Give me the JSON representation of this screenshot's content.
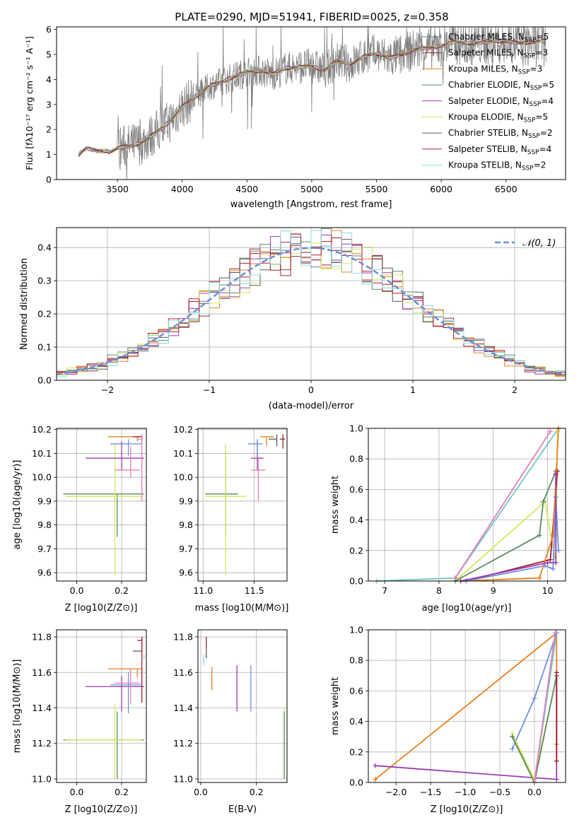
{
  "figure": {
    "title": "PLATE=0290, MJD=51941, FIBERID=0025, z=0.358",
    "colors": {
      "Chabrier MILES": "#5b8a63",
      "Salpeter MILES": "#a31e2a",
      "Kroupa MILES": "#e87f1e",
      "Chabrier ELODIE": "#5b8a63",
      "Salpeter ELODIE": "#9b3fb0",
      "Kroupa ELODIE": "#d6e55a",
      "Chabrier STELIB": "#5a5a5a",
      "Salpeter STELIB": "#b3202e",
      "Kroupa STELIB": "#8ed8de",
      "pink": "#e57fb8",
      "blue": "#6f8fe0",
      "teal": "#6ec6c6",
      "data": "#808080"
    }
  },
  "chart_data": [
    {
      "id": "spectrum",
      "type": "line",
      "title": "PLATE=0290, MJD=51941, FIBERID=0025, z=0.358",
      "xlabel": "wavelength [Angstrom, rest frame]",
      "ylabel": "Flux [fλ10⁻¹⁷ erg cm⁻² s⁻¹ A⁻¹]",
      "xlim": [
        3030,
        6960
      ],
      "ylim": [
        0,
        6.1
      ],
      "xticks": [
        3500,
        4000,
        4500,
        5000,
        5500,
        6000,
        6500
      ],
      "xtick_labels": [
        "3500",
        "4000",
        "4500",
        "5000",
        "5500",
        "6000",
        "6500"
      ],
      "yticks": [
        0,
        1,
        2,
        3,
        4,
        5,
        6
      ],
      "ytick_labels": [
        "0",
        "1",
        "2",
        "3",
        "4",
        "5",
        "6"
      ],
      "legend": "upper right",
      "continuum": {
        "x": [
          3200,
          3260,
          3300,
          3350,
          3400,
          3450,
          3500,
          3600,
          3700,
          3800,
          3900,
          4000,
          4100,
          4200,
          4300,
          4400,
          4500,
          4600,
          4700,
          4800,
          4900,
          5000,
          5100,
          5200,
          5300,
          5400,
          5500,
          5600,
          5700,
          5800,
          5900,
          6000,
          6100,
          6200,
          6300,
          6400,
          6500,
          6600,
          6700,
          6800
        ],
        "y": [
          1.0,
          1.25,
          1.2,
          1.15,
          1.15,
          1.1,
          1.25,
          1.35,
          1.5,
          1.9,
          2.3,
          2.9,
          3.3,
          3.7,
          3.9,
          4.1,
          4.3,
          4.35,
          4.2,
          4.45,
          4.5,
          4.55,
          4.35,
          4.75,
          4.6,
          4.9,
          5.05,
          4.85,
          5.0,
          5.2,
          5.25,
          5.35,
          5.5,
          5.45,
          5.45,
          5.55,
          5.5,
          5.45,
          5.5,
          5.55
        ]
      },
      "series": [
        {
          "name": "Chabrier MILES, N_SSP=5",
          "label_main": "Chabrier MILES, N",
          "label_sub": "SSP",
          "label_tail": "=5",
          "color": "#5b8a63"
        },
        {
          "name": "Salpeter MILES, N_SSP=3",
          "label_main": "Salpeter MILES, N",
          "label_sub": "SSP",
          "label_tail": "=3",
          "color": "#a31e2a"
        },
        {
          "name": "Kroupa MILES, N_SSP=3",
          "label_main": "Kroupa MILES, N",
          "label_sub": "SSP",
          "label_tail": "=3",
          "color": "#e87f1e"
        },
        {
          "name": "Chabrier ELODIE, N_SSP=5",
          "label_main": "Chabrier ELODIE, N",
          "label_sub": "SSP",
          "label_tail": "=5",
          "color": "#5b8a63"
        },
        {
          "name": "Salpeter ELODIE, N_SSP=4",
          "label_main": "Salpeter ELODIE, N",
          "label_sub": "SSP",
          "label_tail": "=4",
          "color": "#9b3fb0"
        },
        {
          "name": "Kroupa ELODIE, N_SSP=5",
          "label_main": "Kroupa ELODIE, N",
          "label_sub": "SSP",
          "label_tail": "=5",
          "color": "#d6e55a"
        },
        {
          "name": "Chabrier STELIB, N_SSP=2",
          "label_main": "Chabrier STELIB, N",
          "label_sub": "SSP",
          "label_tail": "=2",
          "color": "#5a5a5a"
        },
        {
          "name": "Salpeter STELIB, N_SSP=4",
          "label_main": "Salpeter STELIB, N",
          "label_sub": "SSP",
          "label_tail": "=4",
          "color": "#b3202e"
        },
        {
          "name": "Kroupa STELIB, N_SSP=2",
          "label_main": "Kroupa STELIB, N",
          "label_sub": "SSP",
          "label_tail": "=2",
          "color": "#8ed8de"
        }
      ]
    },
    {
      "id": "residuals",
      "type": "line",
      "xlabel": "(data-model)/error",
      "ylabel": "Normed distribution",
      "xlim": [
        -2.5,
        2.5
      ],
      "ylim": [
        0,
        0.46
      ],
      "xticks": [
        -2,
        -1,
        0,
        1,
        2
      ],
      "xtick_labels": [
        "−2",
        "−1",
        "0",
        "1",
        "2"
      ],
      "yticks": [
        0.0,
        0.1,
        0.2,
        0.3,
        0.4
      ],
      "ytick_labels": [
        "0.0",
        "0.1",
        "0.2",
        "0.3",
        "0.4"
      ],
      "legend": "upper right",
      "normal_label": "𝒩(0, 1)",
      "bin_width": 0.1,
      "series_colors": [
        "#5b8a63",
        "#a31e2a",
        "#e87f1e",
        "#9b3fb0",
        "#d6e55a",
        "#5a5a5a",
        "#b3202e",
        "#8ed8de"
      ]
    },
    {
      "id": "age-vs-Z",
      "type": "scatter",
      "xlabel": "Z [log10(Z/Z⊙)]",
      "ylabel": "age [log10(age/yr)]",
      "xlim": [
        -0.09,
        0.31
      ],
      "ylim": [
        9.565,
        10.205
      ],
      "xticks": [
        0.0,
        0.2
      ],
      "xtick_labels": [
        "0.0",
        "0.2"
      ],
      "yticks": [
        9.6,
        9.7,
        9.8,
        9.9,
        10.0,
        10.1,
        10.2
      ],
      "ytick_labels": [
        "9.6",
        "9.7",
        "9.8",
        "9.9",
        "10.0",
        "10.1",
        "10.2"
      ],
      "points": [
        {
          "x": 0.18,
          "xerr": [
            0.24,
            0.12
          ],
          "y": 9.93,
          "yerr": [
            0.18,
            0.0
          ],
          "color": "#5b8a63"
        },
        {
          "x": 0.17,
          "xerr": [
            0.22,
            0.12
          ],
          "y": 9.92,
          "yerr": [
            0.33,
            0.22
          ],
          "color": "#d6e55a"
        },
        {
          "x": 0.2,
          "xerr": [
            0.16,
            0.1
          ],
          "y": 10.08,
          "yerr": [
            0.05,
            0.07
          ],
          "color": "#9b3fb0"
        },
        {
          "x": 0.23,
          "xerr": [
            0.08,
            0.06
          ],
          "y": 10.14,
          "yerr": [
            0.05,
            0.02
          ],
          "color": "#6f8fe0"
        },
        {
          "x": 0.24,
          "xerr": [
            0.07,
            0.04
          ],
          "y": 10.03,
          "yerr": [
            0.03,
            0.1
          ],
          "color": "#e57fb8"
        },
        {
          "x": 0.27,
          "xerr": [
            0.13,
            0.02
          ],
          "y": 10.17,
          "yerr": [
            0.02,
            0.0
          ],
          "color": "#e87f1e"
        },
        {
          "x": 0.29,
          "xerr": [
            0.04,
            0.0
          ],
          "y": 10.17,
          "yerr": [
            0.03,
            0.01
          ],
          "color": "#a31e2a"
        },
        {
          "x": 0.29,
          "xerr": [
            0.02,
            0.0
          ],
          "y": 10.16,
          "yerr": [
            0.26,
            0.02
          ],
          "color": "#e57fb8"
        }
      ]
    },
    {
      "id": "age-vs-mass",
      "type": "scatter",
      "xlabel": "mass [log10(M/M⊙)]",
      "xlim": [
        10.95,
        11.82
      ],
      "ylim": [
        9.565,
        10.205
      ],
      "xticks": [
        11.0,
        11.5
      ],
      "xtick_labels": [
        "11.0",
        "11.5"
      ],
      "yticks": [
        9.6,
        9.7,
        9.8,
        9.9,
        10.0,
        10.1,
        10.2
      ],
      "ytick_labels": [
        "9.6",
        "9.7",
        "9.8",
        "9.9",
        "10.0",
        "10.1",
        "10.2"
      ],
      "points": [
        {
          "x": 11.22,
          "xerr": [
            0.2,
            0.12
          ],
          "y": 9.93,
          "yerr": [
            0.18,
            0.18
          ],
          "color": "#5b8a63"
        },
        {
          "x": 11.22,
          "xerr": [
            0.2,
            0.2
          ],
          "y": 9.92,
          "yerr": [
            0.33,
            0.22
          ],
          "color": "#d6e55a"
        },
        {
          "x": 11.53,
          "xerr": [
            0.06,
            0.06
          ],
          "y": 10.08,
          "yerr": [
            0.05,
            0.07
          ],
          "color": "#9b3fb0"
        },
        {
          "x": 11.53,
          "xerr": [
            0.09,
            0.05
          ],
          "y": 10.14,
          "yerr": [
            0.05,
            0.02
          ],
          "color": "#6f8fe0"
        },
        {
          "x": 11.54,
          "xerr": [
            0.07,
            0.07
          ],
          "y": 10.03,
          "yerr": [
            0.13,
            0.05
          ],
          "color": "#e57fb8"
        },
        {
          "x": 11.62,
          "xerr": [
            0.06,
            0.07
          ],
          "y": 10.17,
          "yerr": [
            0.04,
            0.0
          ],
          "color": "#e87f1e"
        },
        {
          "x": 11.72,
          "xerr": [
            0.08,
            0.0
          ],
          "y": 10.16,
          "yerr": [
            0.03,
            0.02
          ],
          "color": "#5a5a5a"
        },
        {
          "x": 11.78,
          "xerr": [
            0.03,
            0.02
          ],
          "y": 10.16,
          "yerr": [
            0.04,
            0.02
          ],
          "color": "#a31e2a"
        }
      ]
    },
    {
      "id": "weight-vs-age",
      "type": "line",
      "xlabel": "age [log10(age/yr)]",
      "ylabel": "mass weight",
      "xlim": [
        6.7,
        10.33
      ],
      "ylim": [
        0.0,
        1.0
      ],
      "xticks": [
        7,
        8,
        9,
        10
      ],
      "xtick_labels": [
        "7",
        "8",
        "9",
        "10"
      ],
      "yticks": [
        0.0,
        0.2,
        0.4,
        0.6,
        0.8,
        1.0
      ],
      "ytick_labels": [
        "0.0",
        "0.2",
        "0.4",
        "0.6",
        "0.8",
        "1.0"
      ],
      "series": [
        {
          "x": [
            6.85,
            8.3,
            10.2
          ],
          "y": [
            0.0,
            0.02,
            1.0
          ],
          "color": "#6ec6c6"
        },
        {
          "x": [
            8.3,
            10.05
          ],
          "y": [
            0.02,
            0.98
          ],
          "color": "#e57fb8"
        },
        {
          "x": [
            8.3,
            9.95,
            10.15,
            10.18
          ],
          "y": [
            0.0,
            0.52,
            0.12,
            0.98
          ],
          "color": "#d6e55a"
        },
        {
          "x": [
            8.3,
            9.85,
            9.92,
            10.15,
            10.15
          ],
          "y": [
            0.0,
            0.3,
            0.52,
            0.72,
            0.7
          ],
          "color": "#5b8a63"
        },
        {
          "x": [
            8.5,
            10.05,
            10.18
          ],
          "y": [
            0.0,
            0.14,
            0.72
          ],
          "color": "#a31e2a"
        },
        {
          "x": [
            8.4,
            9.85,
            10.1,
            10.2
          ],
          "y": [
            0.0,
            0.02,
            0.3,
            1.0
          ],
          "color": "#e87f1e"
        },
        {
          "x": [
            8.5,
            9.95,
            10.1,
            10.15,
            10.2
          ],
          "y": [
            0.0,
            0.1,
            0.08,
            0.55,
            0.2
          ],
          "color": "#6f8fe0"
        },
        {
          "x": [
            8.4,
            10.0,
            10.15,
            10.15
          ],
          "y": [
            0.0,
            0.12,
            0.12,
            0.7
          ],
          "color": "#9b3fb0"
        }
      ]
    },
    {
      "id": "mass-vs-Z",
      "type": "scatter",
      "xlabel": "Z [log10(Z/Z⊙)]",
      "ylabel": "mass [log10(M/M⊙)]",
      "xlim": [
        -0.09,
        0.31
      ],
      "ylim": [
        10.98,
        11.84
      ],
      "xticks": [
        0.0,
        0.2
      ],
      "xtick_labels": [
        "0.0",
        "0.2"
      ],
      "yticks": [
        11.0,
        11.2,
        11.4,
        11.6,
        11.8
      ],
      "ytick_labels": [
        "11.0",
        "11.2",
        "11.4",
        "11.6",
        "11.8"
      ],
      "points": [
        {
          "x": 0.18,
          "xerr": [
            0.24,
            0.12
          ],
          "y": 11.22,
          "yerr": [
            0.22,
            0.16
          ],
          "color": "#5b8a63"
        },
        {
          "x": 0.17,
          "xerr": [
            0.22,
            0.12
          ],
          "y": 11.22,
          "yerr": [
            0.22,
            0.2
          ],
          "color": "#d6e55a"
        },
        {
          "x": 0.2,
          "xerr": [
            0.16,
            0.1
          ],
          "y": 11.52,
          "yerr": [
            0.14,
            0.06
          ],
          "color": "#9b3fb0"
        },
        {
          "x": 0.23,
          "xerr": [
            0.08,
            0.06
          ],
          "y": 11.53,
          "yerr": [
            0.16,
            0.07
          ],
          "color": "#6f8fe0"
        },
        {
          "x": 0.24,
          "xerr": [
            0.07,
            0.04
          ],
          "y": 11.54,
          "yerr": [
            0.12,
            0.08
          ],
          "color": "#e57fb8"
        },
        {
          "x": 0.27,
          "xerr": [
            0.13,
            0.02
          ],
          "y": 11.62,
          "yerr": [
            0.05,
            0.0
          ],
          "color": "#e87f1e"
        },
        {
          "x": 0.29,
          "xerr": [
            0.04,
            0.0
          ],
          "y": 11.72,
          "yerr": [
            0.0,
            0.08
          ],
          "color": "#5a5a5a"
        },
        {
          "x": 0.29,
          "xerr": [
            0.02,
            0.0
          ],
          "y": 11.78,
          "yerr": [
            0.35,
            0.02
          ],
          "color": "#a31e2a"
        },
        {
          "x": 0.3,
          "xerr": [
            0.01,
            0.0
          ],
          "y": 11.68,
          "yerr": [
            0.0,
            0.02
          ],
          "color": "#8ed8de"
        }
      ]
    },
    {
      "id": "mass-vs-EBV",
      "type": "scatter",
      "xlabel": "E(B-V)",
      "xlim": [
        -0.01,
        0.31
      ],
      "ylim": [
        10.98,
        11.84
      ],
      "xticks": [
        0.0,
        0.2
      ],
      "xtick_labels": [
        "0.0",
        "0.2"
      ],
      "yticks": [
        11.0,
        11.2,
        11.4,
        11.6,
        11.8
      ],
      "ytick_labels": [
        "11.0",
        "11.2",
        "11.4",
        "11.6",
        "11.8"
      ],
      "points": [
        {
          "x": 0.01,
          "y": 11.68,
          "yerr": [
            0.04,
            0.02
          ],
          "color": "#8ed8de"
        },
        {
          "x": 0.02,
          "y": 11.72,
          "yerr": [
            0.04,
            0.02
          ],
          "color": "#5a5a5a"
        },
        {
          "x": 0.02,
          "y": 11.78,
          "yerr": [
            0.04,
            0.02
          ],
          "color": "#a31e2a"
        },
        {
          "x": 0.04,
          "y": 11.58,
          "yerr": [
            0.08,
            0.05
          ],
          "color": "#e87f1e"
        },
        {
          "x": 0.13,
          "y": 11.52,
          "yerr": [
            0.14,
            0.12
          ],
          "color": "#9b3fb0"
        },
        {
          "x": 0.18,
          "y": 11.52,
          "yerr": [
            0.14,
            0.12
          ],
          "color": "#6f8fe0"
        },
        {
          "x": 0.3,
          "y": 11.2,
          "yerr": [
            0.2,
            0.2
          ],
          "color": "#d6e55a"
        },
        {
          "x": 0.3,
          "y": 11.2,
          "yerr": [
            0.2,
            0.18
          ],
          "color": "#5b8a63"
        }
      ]
    },
    {
      "id": "weight-vs-Z",
      "type": "line",
      "xlabel": "Z [log10(Z/Z⊙)]",
      "ylabel": "mass weight",
      "xlim": [
        -2.4,
        0.45
      ],
      "ylim": [
        0.0,
        1.0
      ],
      "xticks": [
        -2.0,
        -1.5,
        -1.0,
        -0.5,
        0.0
      ],
      "xtick_labels": [
        "−2.0",
        "−1.5",
        "−1.0",
        "−0.5",
        "0.0"
      ],
      "yticks": [
        0.0,
        0.2,
        0.4,
        0.6,
        0.8,
        1.0
      ],
      "ytick_labels": [
        "0.0",
        "0.2",
        "0.4",
        "0.6",
        "0.8",
        "1.0"
      ],
      "series": [
        {
          "x": [
            -2.3,
            0.32,
            0.32
          ],
          "y": [
            0.02,
            0.98,
            0.25
          ],
          "color": "#e87f1e"
        },
        {
          "x": [
            -2.3,
            0.32,
            0.32
          ],
          "y": [
            0.11,
            0.02,
            0.7
          ],
          "color": "#9b3fb0"
        },
        {
          "x": [
            -0.32,
            0.0,
            0.32
          ],
          "y": [
            0.3,
            0.0,
            0.98
          ],
          "color": "#6ec6c6"
        },
        {
          "x": [
            -0.32,
            0.0,
            0.32
          ],
          "y": [
            0.22,
            0.55,
            0.98
          ],
          "color": "#6f8fe0"
        },
        {
          "x": [
            -0.32,
            0.0,
            0.32
          ],
          "y": [
            0.32,
            0.02,
            0.7
          ],
          "color": "#d6e55a"
        },
        {
          "x": [
            -0.32,
            0.0,
            0.32
          ],
          "y": [
            0.3,
            0.0,
            0.7
          ],
          "color": "#5b8a63"
        },
        {
          "x": [
            0.0,
            0.3
          ],
          "y": [
            0.0,
            0.98
          ],
          "color": "#e57fb8"
        },
        {
          "x": [
            0.32,
            0.32
          ],
          "y": [
            0.14,
            0.72
          ],
          "color": "#a31e2a"
        }
      ]
    }
  ]
}
